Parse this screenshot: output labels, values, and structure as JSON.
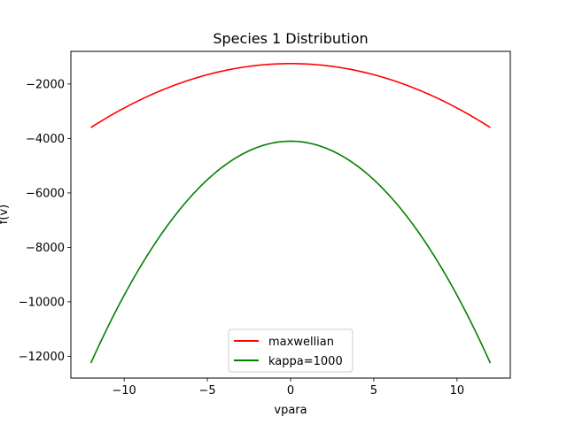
{
  "chart_data": {
    "type": "line",
    "title": "Species 1 Distribution",
    "xlabel": "vpara",
    "ylabel": "f(v)",
    "xlim": [
      -13.2,
      13.2
    ],
    "ylim": [
      -12800,
      -800
    ],
    "xticks": [
      -10,
      -5,
      0,
      5,
      10
    ],
    "yticks": [
      -12000,
      -10000,
      -8000,
      -6000,
      -4000,
      -2000
    ],
    "xtick_labels": [
      "−10",
      "−5",
      "0",
      "5",
      "10"
    ],
    "ytick_labels": [
      "−12000",
      "−10000",
      "−8000",
      "−6000",
      "−4000",
      "−2000"
    ],
    "grid": false,
    "legend_position": "lower-center",
    "series": [
      {
        "name": "maxwellian",
        "color": "#ff0000",
        "x_range": [
          -12,
          12
        ],
        "peak_value": -1250,
        "edge_value": -3600,
        "shape": "parabola"
      },
      {
        "name": "kappa=1000",
        "color": "#008000",
        "x_range": [
          -12,
          12
        ],
        "peak_value": -4100,
        "edge_value": -12250,
        "shape": "parabola"
      }
    ]
  }
}
